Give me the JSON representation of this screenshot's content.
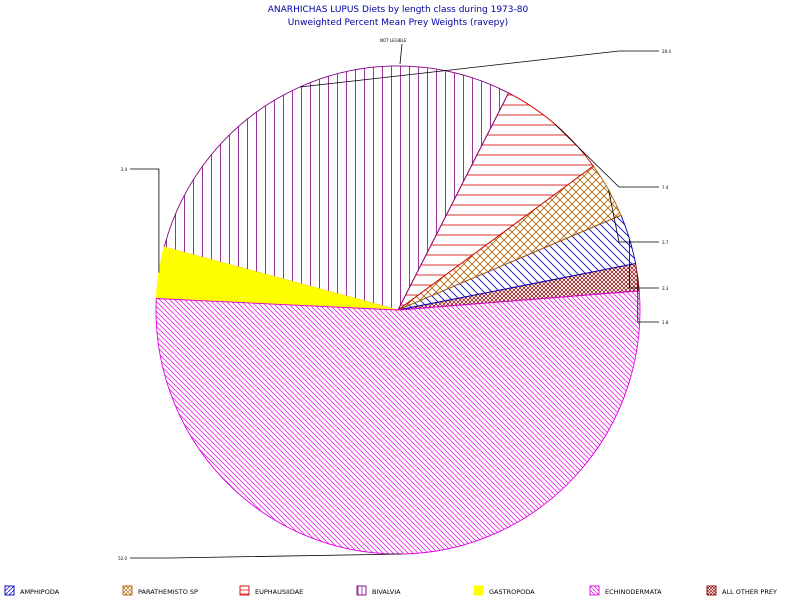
{
  "chart_data": {
    "type": "pie",
    "title": "ANARHICHAS LUPUS Diets by length class during 1973-80",
    "subtitle": "Unweighted Percent Mean Prey Weights (ravepy)",
    "slices": [
      {
        "name": "ALL OTHER PREY",
        "value": 1.8,
        "label": "1.8",
        "color": "#8b0000",
        "pattern": "crosshatch-fine"
      },
      {
        "name": "AMPHIPODA",
        "value": 3.3,
        "label": "3.3",
        "color": "#0000c0",
        "pattern": "diag-down"
      },
      {
        "name": "PARATHEMISTO SP",
        "value": 3.7,
        "label": "3.7",
        "color": "#b06000",
        "pattern": "crosshatch"
      },
      {
        "name": "EUPHAUSIIDAE",
        "value": 7.4,
        "label": "7.4",
        "color": "#d00000",
        "pattern": "horizontal"
      },
      {
        "name": "BIVALVIA",
        "value": 28.4,
        "label": "28.4",
        "color": "#800080",
        "pattern": "vertical"
      },
      {
        "name": "GASTROPODA",
        "value": 3.4,
        "label": "3.4",
        "color": "#ffff00",
        "pattern": "solid"
      },
      {
        "name": "ECHINODERMATA",
        "value": 52.0,
        "label": "52.0",
        "color": "#e000e0",
        "pattern": "diag-down-fine"
      }
    ],
    "legend": {
      "placement": "bottom",
      "items": [
        {
          "name": "AMPHIPODA",
          "color": "#0000c0",
          "pattern": "diag-up"
        },
        {
          "name": "PARATHEMISTO SP",
          "color": "#b06000",
          "pattern": "diag-cross"
        },
        {
          "name": "EUPHAUSIIDAE",
          "color": "#d00000",
          "pattern": "horizontal"
        },
        {
          "name": "BIVALVIA",
          "color": "#800080",
          "pattern": "vertical"
        },
        {
          "name": "GASTROPODA",
          "color": "#ffff00",
          "pattern": "solid"
        },
        {
          "name": "ECHINODERMATA",
          "color": "#e000e0",
          "pattern": "diag-down"
        },
        {
          "name": "ALL OTHER PREY",
          "color": "#8b0000",
          "pattern": "crosshatch"
        }
      ]
    },
    "extra_label": "NOT LEGIBLE"
  }
}
